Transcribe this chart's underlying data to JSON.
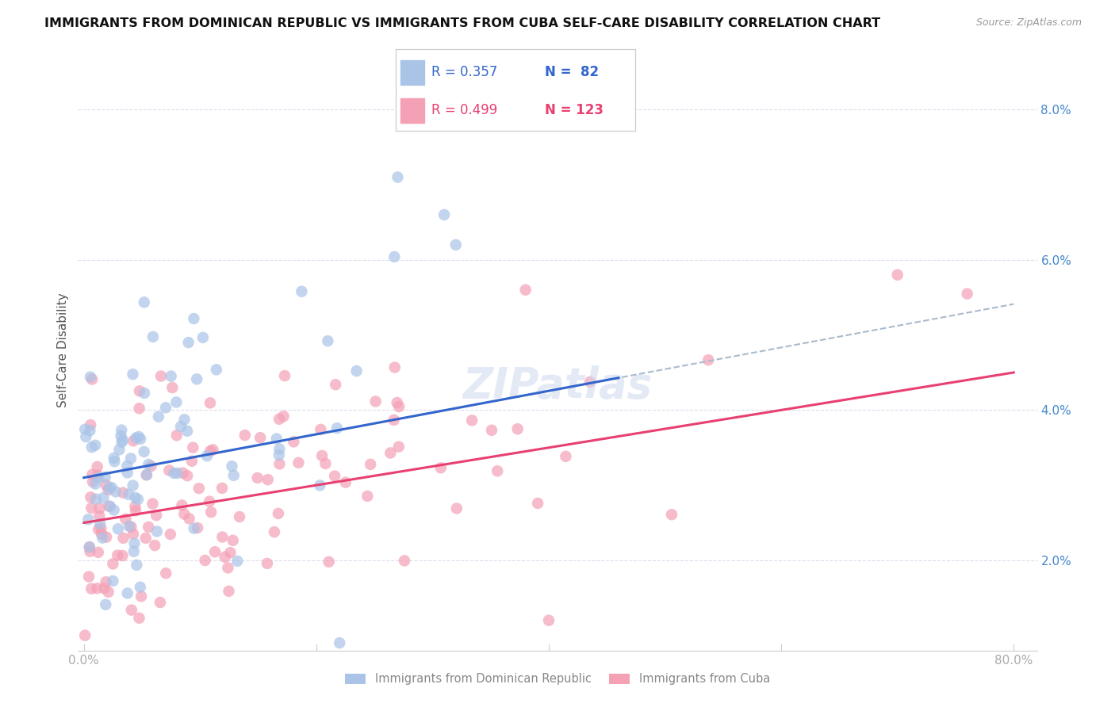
{
  "title": "IMMIGRANTS FROM DOMINICAN REPUBLIC VS IMMIGRANTS FROM CUBA SELF-CARE DISABILITY CORRELATION CHART",
  "source": "Source: ZipAtlas.com",
  "ylabel": "Self-Care Disability",
  "ytick_labels": [
    "2.0%",
    "4.0%",
    "6.0%",
    "8.0%"
  ],
  "ytick_values": [
    0.02,
    0.04,
    0.06,
    0.08
  ],
  "xtick_labels": [
    "0.0%",
    "80.0%"
  ],
  "xtick_values": [
    0.0,
    0.8
  ],
  "xlim": [
    -0.005,
    0.82
  ],
  "ylim": [
    0.008,
    0.088
  ],
  "legend_r1": "R = 0.357",
  "legend_n1": "N =  82",
  "legend_r2": "R = 0.499",
  "legend_n2": "N = 123",
  "color_dr": "#aac4e8",
  "color_cuba": "#f4a0b5",
  "trendline_dr_solid_color": "#3366cc",
  "trendline_dr_dashed_color": "#aabbcc",
  "trendline_cuba_color": "#e84070",
  "background_color": "#ffffff",
  "grid_color": "#ddddee",
  "title_fontsize": 11.5,
  "source_fontsize": 9,
  "axis_label_fontsize": 11,
  "tick_color_right": "#4488cc",
  "tick_color_bottom": "#aaaaaa",
  "ylabel_color": "#555555",
  "watermark_color": "#ccd8ee",
  "legend_label_dr": "Immigrants from Dominican Republic",
  "legend_label_cuba": "Immigrants from Cuba"
}
